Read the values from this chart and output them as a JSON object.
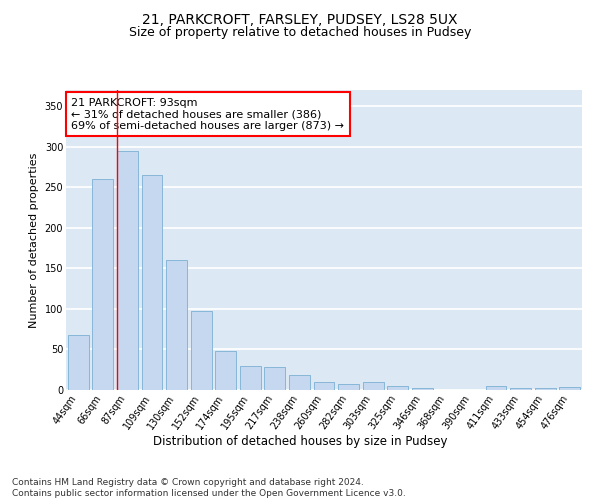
{
  "title1": "21, PARKCROFT, FARSLEY, PUDSEY, LS28 5UX",
  "title2": "Size of property relative to detached houses in Pudsey",
  "xlabel": "Distribution of detached houses by size in Pudsey",
  "ylabel": "Number of detached properties",
  "categories": [
    "44sqm",
    "66sqm",
    "87sqm",
    "109sqm",
    "130sqm",
    "152sqm",
    "174sqm",
    "195sqm",
    "217sqm",
    "238sqm",
    "260sqm",
    "282sqm",
    "303sqm",
    "325sqm",
    "346sqm",
    "368sqm",
    "390sqm",
    "411sqm",
    "433sqm",
    "454sqm",
    "476sqm"
  ],
  "values": [
    68,
    260,
    295,
    265,
    160,
    98,
    48,
    30,
    28,
    18,
    10,
    7,
    10,
    5,
    3,
    0,
    0,
    5,
    3,
    3,
    4
  ],
  "bar_color": "#c5d8f0",
  "bar_edge_color": "#7aafd4",
  "highlight_index": 2,
  "highlight_line_color": "red",
  "annotation_text": "21 PARKCROFT: 93sqm\n← 31% of detached houses are smaller (386)\n69% of semi-detached houses are larger (873) →",
  "annotation_box_color": "white",
  "annotation_box_edge_color": "red",
  "ylim": [
    0,
    370
  ],
  "yticks": [
    0,
    50,
    100,
    150,
    200,
    250,
    300,
    350
  ],
  "footnote": "Contains HM Land Registry data © Crown copyright and database right 2024.\nContains public sector information licensed under the Open Government Licence v3.0.",
  "background_color": "#dce9f5",
  "grid_color": "white",
  "title1_fontsize": 10,
  "title2_fontsize": 9,
  "xlabel_fontsize": 8.5,
  "ylabel_fontsize": 8,
  "tick_fontsize": 7,
  "annotation_fontsize": 8,
  "footnote_fontsize": 6.5
}
